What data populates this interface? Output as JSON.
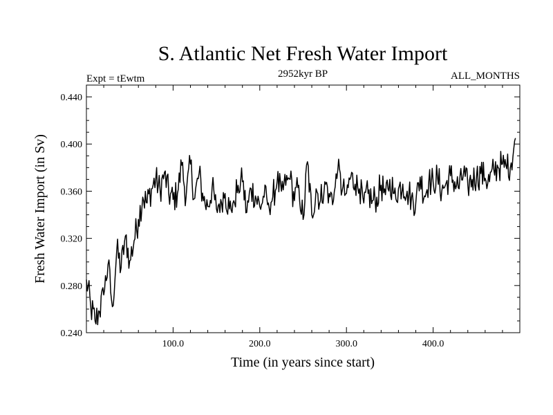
{
  "chart_data": {
    "type": "line",
    "title": "S. Atlantic Net Fresh Water Import",
    "subtitle_left": "Expt = tEwtm",
    "subtitle_center": "2952kyr BP",
    "subtitle_right": "ALL_MONTHS",
    "xlabel": "Time (in years since start)",
    "ylabel": "Fresh Water Import (in Sv)",
    "xlim": [
      0,
      500
    ],
    "ylim": [
      0.24,
      0.45
    ],
    "x_ticks": [
      100,
      200,
      300,
      400
    ],
    "x_tick_labels": [
      "100.0",
      "200.0",
      "300.0",
      "400.0"
    ],
    "y_ticks": [
      0.24,
      0.28,
      0.32,
      0.36,
      0.4,
      0.44
    ],
    "y_tick_labels": [
      "0.240",
      "0.280",
      "0.320",
      "0.360",
      "0.400",
      "0.440"
    ],
    "series": [
      {
        "name": "Fresh Water Import",
        "color": "#000000",
        "x_start": 0,
        "x_step": 5,
        "values": [
          0.285,
          0.262,
          0.25,
          0.258,
          0.272,
          0.298,
          0.262,
          0.31,
          0.295,
          0.322,
          0.301,
          0.318,
          0.336,
          0.355,
          0.35,
          0.362,
          0.37,
          0.361,
          0.376,
          0.358,
          0.353,
          0.358,
          0.382,
          0.355,
          0.383,
          0.354,
          0.375,
          0.352,
          0.347,
          0.363,
          0.345,
          0.353,
          0.358,
          0.345,
          0.352,
          0.365,
          0.368,
          0.342,
          0.362,
          0.356,
          0.347,
          0.355,
          0.35,
          0.355,
          0.368,
          0.36,
          0.365,
          0.37,
          0.352,
          0.365,
          0.336,
          0.385,
          0.34,
          0.362,
          0.352,
          0.368,
          0.358,
          0.352,
          0.378,
          0.36,
          0.358,
          0.372,
          0.366,
          0.362,
          0.35,
          0.358,
          0.352,
          0.355,
          0.365,
          0.357,
          0.37,
          0.358,
          0.362,
          0.366,
          0.36,
          0.355,
          0.35,
          0.372,
          0.356,
          0.368,
          0.368,
          0.372,
          0.36,
          0.367,
          0.373,
          0.368,
          0.362,
          0.375,
          0.365,
          0.37,
          0.372,
          0.375,
          0.371,
          0.368,
          0.378,
          0.38,
          0.383,
          0.379,
          0.384,
          0.405
        ]
      }
    ]
  }
}
